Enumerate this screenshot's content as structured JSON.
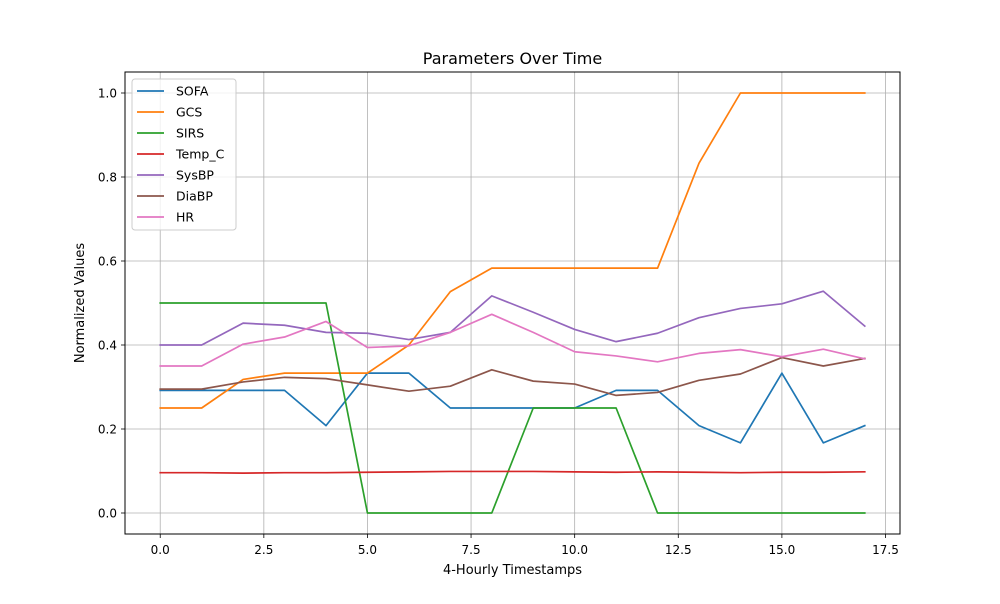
{
  "chart_data": {
    "type": "line",
    "title": "Parameters Over Time",
    "xlabel": "4-Hourly Timestamps",
    "ylabel": "Normalized Values",
    "xlim": [
      -0.85,
      17.85
    ],
    "ylim": [
      -0.05,
      1.05
    ],
    "xticks": [
      0.0,
      2.5,
      5.0,
      7.5,
      10.0,
      12.5,
      15.0,
      17.5
    ],
    "xtick_labels": [
      "0.0",
      "2.5",
      "5.0",
      "7.5",
      "10.0",
      "12.5",
      "15.0",
      "17.5"
    ],
    "yticks": [
      0.0,
      0.2,
      0.4,
      0.6,
      0.8,
      1.0
    ],
    "ytick_labels": [
      "0.0",
      "0.2",
      "0.4",
      "0.6",
      "0.8",
      "1.0"
    ],
    "grid": true,
    "legend_position": "top-left",
    "x": [
      0,
      1,
      2,
      3,
      4,
      5,
      6,
      7,
      8,
      9,
      10,
      11,
      12,
      13,
      14,
      15,
      16,
      17
    ],
    "series": [
      {
        "name": "SOFA",
        "color": "#1f77b4",
        "values": [
          0.292,
          0.292,
          0.292,
          0.292,
          0.208,
          0.333,
          0.333,
          0.25,
          0.25,
          0.25,
          0.25,
          0.292,
          0.292,
          0.208,
          0.167,
          0.333,
          0.167,
          0.208
        ]
      },
      {
        "name": "GCS",
        "color": "#ff7f0e",
        "values": [
          0.25,
          0.25,
          0.318,
          0.333,
          0.333,
          0.333,
          0.4,
          0.527,
          0.583,
          0.583,
          0.583,
          0.583,
          0.583,
          0.833,
          1.0,
          1.0,
          1.0,
          1.0
        ]
      },
      {
        "name": "SIRS",
        "color": "#2ca02c",
        "values": [
          0.5,
          0.5,
          0.5,
          0.5,
          0.5,
          0.0,
          0.0,
          0.0,
          0.0,
          0.25,
          0.25,
          0.25,
          0.0,
          0.0,
          0.0,
          0.0,
          0.0,
          0.0
        ]
      },
      {
        "name": "Temp_C",
        "color": "#d62728",
        "values": [
          0.096,
          0.096,
          0.095,
          0.096,
          0.096,
          0.097,
          0.098,
          0.099,
          0.099,
          0.099,
          0.098,
          0.097,
          0.098,
          0.097,
          0.096,
          0.097,
          0.097,
          0.098
        ]
      },
      {
        "name": "SysBP",
        "color": "#9467bd",
        "values": [
          0.4,
          0.4,
          0.452,
          0.447,
          0.43,
          0.428,
          0.413,
          0.43,
          0.517,
          0.478,
          0.437,
          0.408,
          0.428,
          0.465,
          0.487,
          0.498,
          0.528,
          0.445
        ]
      },
      {
        "name": "DiaBP",
        "color": "#8c564b",
        "values": [
          0.295,
          0.295,
          0.312,
          0.323,
          0.32,
          0.305,
          0.29,
          0.302,
          0.341,
          0.314,
          0.307,
          0.28,
          0.287,
          0.316,
          0.331,
          0.37,
          0.35,
          0.368
        ]
      },
      {
        "name": "HR",
        "color": "#e377c2",
        "values": [
          0.35,
          0.35,
          0.402,
          0.419,
          0.456,
          0.394,
          0.398,
          0.43,
          0.473,
          0.43,
          0.384,
          0.374,
          0.36,
          0.38,
          0.389,
          0.372,
          0.39,
          0.367
        ]
      }
    ]
  }
}
